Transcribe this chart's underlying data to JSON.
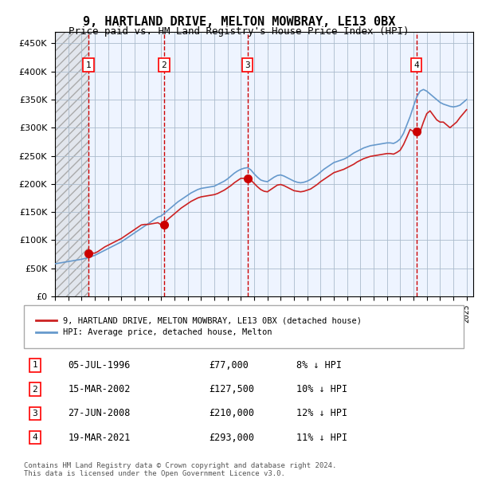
{
  "title": "9, HARTLAND DRIVE, MELTON MOWBRAY, LE13 0BX",
  "subtitle": "Price paid vs. HM Land Registry's House Price Index (HPI)",
  "xlim_start": 1994.0,
  "xlim_end": 2025.5,
  "ylim": [
    0,
    470000
  ],
  "yticks": [
    0,
    50000,
    100000,
    150000,
    200000,
    250000,
    300000,
    350000,
    400000,
    450000
  ],
  "ytick_labels": [
    "£0",
    "£50K",
    "£100K",
    "£150K",
    "£200K",
    "£250K",
    "£300K",
    "£350K",
    "£400K",
    "£450K"
  ],
  "xticks": [
    1994,
    1995,
    1996,
    1997,
    1998,
    1999,
    2000,
    2001,
    2002,
    2003,
    2004,
    2005,
    2006,
    2007,
    2008,
    2009,
    2010,
    2011,
    2012,
    2013,
    2014,
    2015,
    2016,
    2017,
    2018,
    2019,
    2020,
    2021,
    2022,
    2023,
    2024,
    2025
  ],
  "hpi_color": "#6699cc",
  "price_color": "#cc2222",
  "sale_marker_color": "#cc0000",
  "dashed_line_color": "#cc0000",
  "grid_color": "#aabbcc",
  "plot_bg_color": "#eef4ff",
  "sale_points": [
    {
      "year": 1996.52,
      "price": 77000,
      "label": "1",
      "date": "05-JUL-1996",
      "hpi_pct": "8%"
    },
    {
      "year": 2002.21,
      "price": 127500,
      "label": "2",
      "date": "15-MAR-2002",
      "hpi_pct": "10%"
    },
    {
      "year": 2008.49,
      "price": 210000,
      "label": "3",
      "date": "27-JUN-2008",
      "hpi_pct": "12%"
    },
    {
      "year": 2021.22,
      "price": 293000,
      "label": "4",
      "date": "19-MAR-2021",
      "hpi_pct": "11%"
    }
  ],
  "legend_label_red": "9, HARTLAND DRIVE, MELTON MOWBRAY, LE13 0BX (detached house)",
  "legend_label_blue": "HPI: Average price, detached house, Melton",
  "footer": "Contains HM Land Registry data © Crown copyright and database right 2024.\nThis data is licensed under the Open Government Licence v3.0.",
  "hpi_x": [
    1994.0,
    1994.25,
    1994.5,
    1994.75,
    1995.0,
    1995.25,
    1995.5,
    1995.75,
    1996.0,
    1996.25,
    1996.5,
    1996.75,
    1997.0,
    1997.25,
    1997.5,
    1997.75,
    1998.0,
    1998.25,
    1998.5,
    1998.75,
    1999.0,
    1999.25,
    1999.5,
    1999.75,
    2000.0,
    2000.25,
    2000.5,
    2000.75,
    2001.0,
    2001.25,
    2001.5,
    2001.75,
    2002.0,
    2002.25,
    2002.5,
    2002.75,
    2003.0,
    2003.25,
    2003.5,
    2003.75,
    2004.0,
    2004.25,
    2004.5,
    2004.75,
    2005.0,
    2005.25,
    2005.5,
    2005.75,
    2006.0,
    2006.25,
    2006.5,
    2006.75,
    2007.0,
    2007.25,
    2007.5,
    2007.75,
    2008.0,
    2008.25,
    2008.5,
    2008.75,
    2009.0,
    2009.25,
    2009.5,
    2009.75,
    2010.0,
    2010.25,
    2010.5,
    2010.75,
    2011.0,
    2011.25,
    2011.5,
    2011.75,
    2012.0,
    2012.25,
    2012.5,
    2012.75,
    2013.0,
    2013.25,
    2013.5,
    2013.75,
    2014.0,
    2014.25,
    2014.5,
    2014.75,
    2015.0,
    2015.25,
    2015.5,
    2015.75,
    2016.0,
    2016.25,
    2016.5,
    2016.75,
    2017.0,
    2017.25,
    2017.5,
    2017.75,
    2018.0,
    2018.25,
    2018.5,
    2018.75,
    2019.0,
    2019.25,
    2019.5,
    2019.75,
    2020.0,
    2020.25,
    2020.5,
    2020.75,
    2021.0,
    2021.25,
    2021.5,
    2021.75,
    2022.0,
    2022.25,
    2022.5,
    2022.75,
    2023.0,
    2023.25,
    2023.5,
    2023.75,
    2024.0,
    2024.25,
    2024.5,
    2024.75,
    2025.0
  ],
  "hpi_y": [
    58000,
    59000,
    60000,
    61000,
    62000,
    63000,
    64000,
    65000,
    66000,
    67500,
    69000,
    71000,
    73000,
    76000,
    79000,
    82000,
    85000,
    88000,
    91000,
    94000,
    97000,
    101000,
    105000,
    109000,
    113000,
    117000,
    121000,
    125000,
    129000,
    133000,
    137000,
    141000,
    143000,
    148000,
    153000,
    158000,
    163000,
    168000,
    172000,
    176000,
    180000,
    184000,
    187000,
    190000,
    192000,
    193000,
    194000,
    195000,
    196000,
    199000,
    202000,
    205000,
    209000,
    214000,
    219000,
    223000,
    226000,
    228000,
    229000,
    225000,
    218000,
    212000,
    207000,
    205000,
    204000,
    208000,
    212000,
    215000,
    216000,
    214000,
    211000,
    208000,
    205000,
    203000,
    202000,
    203000,
    205000,
    208000,
    212000,
    216000,
    221000,
    226000,
    230000,
    234000,
    238000,
    240000,
    242000,
    244000,
    247000,
    251000,
    255000,
    258000,
    261000,
    264000,
    266000,
    268000,
    269000,
    270000,
    271000,
    272000,
    273000,
    273000,
    272000,
    275000,
    280000,
    290000,
    305000,
    320000,
    338000,
    355000,
    365000,
    368000,
    365000,
    360000,
    355000,
    350000,
    345000,
    342000,
    340000,
    338000,
    337000,
    338000,
    340000,
    345000,
    350000
  ],
  "price_x": [
    1994.0,
    1994.25,
    1994.5,
    1994.75,
    1995.0,
    1995.25,
    1995.5,
    1995.75,
    1996.0,
    1996.25,
    1996.5,
    1996.75,
    1997.0,
    1997.25,
    1997.5,
    1997.75,
    1998.0,
    1998.25,
    1998.5,
    1998.75,
    1999.0,
    1999.25,
    1999.5,
    1999.75,
    2000.0,
    2000.25,
    2000.5,
    2000.75,
    2001.0,
    2001.25,
    2001.5,
    2001.75,
    2002.0,
    2002.25,
    2002.5,
    2002.75,
    2003.0,
    2003.25,
    2003.5,
    2003.75,
    2004.0,
    2004.25,
    2004.5,
    2004.75,
    2005.0,
    2005.25,
    2005.5,
    2005.75,
    2006.0,
    2006.25,
    2006.5,
    2006.75,
    2007.0,
    2007.25,
    2007.5,
    2007.75,
    2008.0,
    2008.25,
    2008.5,
    2008.75,
    2009.0,
    2009.25,
    2009.5,
    2009.75,
    2010.0,
    2010.25,
    2010.5,
    2010.75,
    2011.0,
    2011.25,
    2011.5,
    2011.75,
    2012.0,
    2012.25,
    2012.5,
    2012.75,
    2013.0,
    2013.25,
    2013.5,
    2013.75,
    2014.0,
    2014.25,
    2014.5,
    2014.75,
    2015.0,
    2015.25,
    2015.5,
    2015.75,
    2016.0,
    2016.25,
    2016.5,
    2016.75,
    2017.0,
    2017.25,
    2017.5,
    2017.75,
    2018.0,
    2018.25,
    2018.5,
    2018.75,
    2019.0,
    2019.25,
    2019.5,
    2019.75,
    2020.0,
    2020.25,
    2020.5,
    2020.75,
    2021.0,
    2021.25,
    2021.5,
    2021.75,
    2022.0,
    2022.25,
    2022.5,
    2022.75,
    2023.0,
    2023.25,
    2023.5,
    2023.75,
    2024.0,
    2024.25,
    2024.5,
    2024.75,
    2025.0
  ],
  "price_y": [
    null,
    null,
    null,
    null,
    null,
    null,
    null,
    null,
    null,
    null,
    77000,
    77000,
    77000,
    80000,
    84000,
    88000,
    91000,
    94000,
    97000,
    100000,
    103000,
    107000,
    111000,
    115000,
    119000,
    123000,
    127000,
    128000,
    128000,
    129000,
    130000,
    131000,
    127500,
    132000,
    137000,
    142000,
    147000,
    152000,
    157000,
    161000,
    165000,
    169000,
    172000,
    175000,
    177000,
    178000,
    179000,
    180000,
    181000,
    183000,
    186000,
    189000,
    193000,
    197000,
    202000,
    206000,
    210000,
    210000,
    210000,
    207000,
    201000,
    195000,
    190000,
    187000,
    186000,
    190000,
    194000,
    198000,
    199000,
    197000,
    194000,
    191000,
    188000,
    187000,
    186000,
    187000,
    189000,
    191000,
    195000,
    199000,
    204000,
    208000,
    212000,
    216000,
    220000,
    222000,
    224000,
    226000,
    229000,
    232000,
    235000,
    239000,
    242000,
    245000,
    247000,
    249000,
    250000,
    251000,
    252000,
    253000,
    254000,
    254000,
    253000,
    256000,
    260000,
    270000,
    283000,
    297000,
    293000,
    293000,
    293000,
    310000,
    325000,
    330000,
    322000,
    314000,
    310000,
    310000,
    305000,
    300000,
    305000,
    310000,
    318000,
    325000,
    332000
  ]
}
